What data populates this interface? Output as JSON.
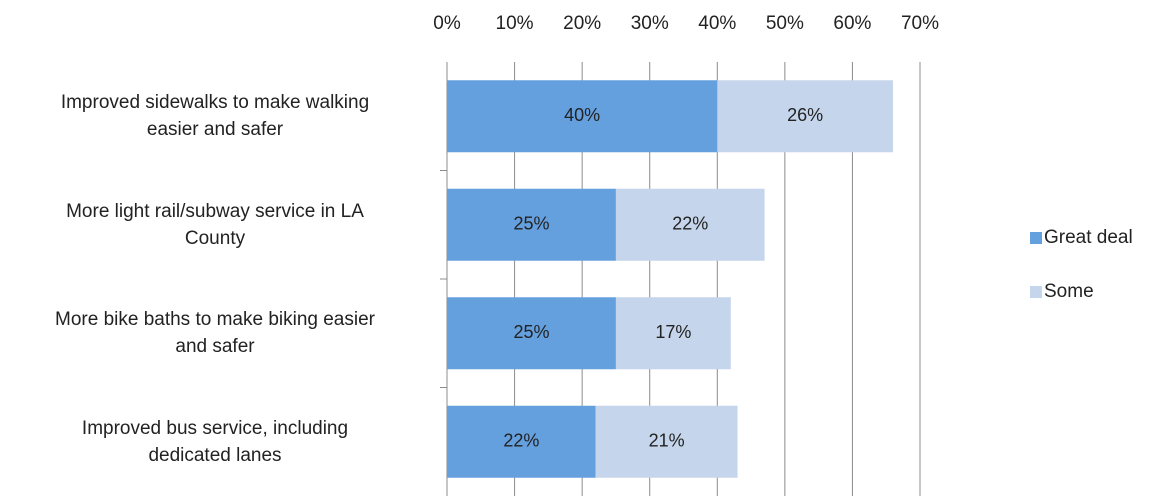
{
  "chart_data": {
    "type": "stacked_barh",
    "categories": [
      "Improved sidewalks to make walking\neasier and safer",
      "More light rail/subway service in LA\nCounty",
      "More bike baths to make biking easier\nand safer",
      "Improved bus service, including\ndedicated lanes"
    ],
    "series": [
      {
        "name": "Great deal",
        "color": "#65a0de",
        "values": [
          40,
          25,
          25,
          22
        ],
        "value_labels": [
          "40%",
          "25%",
          "25%",
          "22%"
        ]
      },
      {
        "name": "Some",
        "color": "#c5d6ec",
        "values": [
          26,
          22,
          17,
          21
        ],
        "value_labels": [
          "26%",
          "22%",
          "17%",
          "21%"
        ]
      }
    ],
    "xlim": [
      0,
      70
    ],
    "xticks": [
      {
        "value": 0,
        "label": "0%"
      },
      {
        "value": 10,
        "label": "10%"
      },
      {
        "value": 20,
        "label": "20%"
      },
      {
        "value": 30,
        "label": "30%"
      },
      {
        "value": 40,
        "label": "40%"
      },
      {
        "value": 50,
        "label": "50%"
      },
      {
        "value": 60,
        "label": "60%"
      },
      {
        "value": 70,
        "label": "70%"
      }
    ],
    "grid": true,
    "legend": "right"
  }
}
